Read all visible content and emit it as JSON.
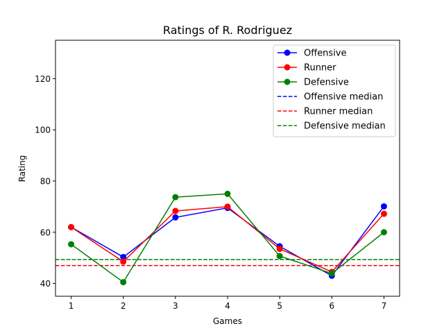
{
  "chart_data": {
    "type": "line",
    "title": "Ratings of R. Rodriguez",
    "xlabel": "Games",
    "ylabel": "Rating",
    "x": [
      1,
      2,
      3,
      4,
      5,
      6,
      7
    ],
    "xticks": [
      "1",
      "2",
      "3",
      "4",
      "5",
      "6",
      "7"
    ],
    "yticks": [
      "40",
      "60",
      "80",
      "100",
      "120"
    ],
    "xlim": [
      0.7,
      7.3
    ],
    "ylim": [
      35,
      135
    ],
    "grid": false,
    "legend_position": "top-right",
    "series": [
      {
        "name": "Offensive",
        "color": "#0000ff",
        "values": [
          62.0,
          50.3,
          65.8,
          69.5,
          54.5,
          43.0,
          70.1
        ]
      },
      {
        "name": "Runner",
        "color": "#ff0000",
        "values": [
          62.0,
          48.5,
          68.3,
          70.0,
          53.5,
          44.5,
          67.2
        ]
      },
      {
        "name": "Defensive",
        "color": "#008000",
        "values": [
          55.3,
          40.5,
          73.7,
          75.0,
          50.7,
          43.9,
          60.0
        ]
      }
    ],
    "medians": [
      {
        "name": "Offensive median",
        "color": "#0000ff",
        "value": 49.3
      },
      {
        "name": "Runner median",
        "color": "#ff0000",
        "value": 47.0
      },
      {
        "name": "Defensive median",
        "color": "#008000",
        "value": 49.3
      }
    ]
  }
}
